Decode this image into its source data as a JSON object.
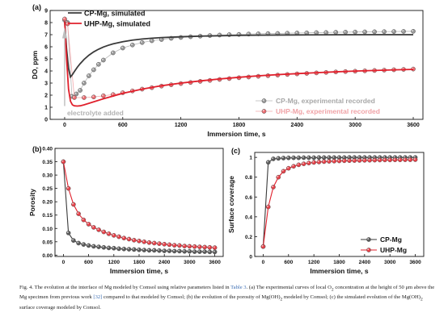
{
  "colors": {
    "cp": "#3a3a3a",
    "uhp": "#e0202c",
    "cp_exp": "#9a9a9a",
    "uhp_exp": "#f2a0a4",
    "link": "#3b6db3"
  },
  "chart_data": [
    {
      "panel": "(a)",
      "type": "line",
      "xlabel": "Immersion time, s",
      "ylabel": "DO, ppm",
      "xlim": [
        -150,
        3700
      ],
      "ylim": [
        0,
        9
      ],
      "xticks": [
        "0",
        "600",
        "1200",
        "1800",
        "2400",
        "3000",
        "3600"
      ],
      "yticks": [
        "0",
        "1",
        "2",
        "3",
        "4",
        "5",
        "6",
        "7",
        "8",
        "9"
      ],
      "legend_top": "top-left",
      "legend_bottom": "bottom-right",
      "annotation": "electrolyte added",
      "series": [
        {
          "name": "CP-Mg, simulated",
          "style": "line",
          "color": "#3a3a3a",
          "x": [
            0,
            20,
            40,
            60,
            80,
            100,
            130,
            160,
            200,
            250,
            300,
            350,
            400,
            450,
            500,
            600,
            700,
            800,
            900,
            1000,
            1200,
            1400,
            1600,
            1800,
            2000,
            2200,
            2400,
            2800,
            3200,
            3600
          ],
          "y": [
            8.1,
            5.8,
            4.2,
            3.5,
            3.7,
            3.95,
            4.3,
            4.6,
            4.95,
            5.3,
            5.58,
            5.8,
            5.98,
            6.12,
            6.24,
            6.42,
            6.55,
            6.64,
            6.71,
            6.76,
            6.83,
            6.88,
            6.91,
            6.94,
            6.96,
            6.97,
            6.98,
            6.99,
            7.0,
            7.0
          ]
        },
        {
          "name": "UHP-Mg, simulated",
          "style": "line",
          "color": "#e0202c",
          "x": [
            0,
            20,
            40,
            60,
            80,
            100,
            130,
            160,
            200,
            300,
            400,
            600,
            800,
            1000,
            1200,
            1400,
            1600,
            1800,
            2000,
            2200,
            2400,
            2600,
            2800,
            3000,
            3200,
            3400,
            3600
          ],
          "y": [
            8.1,
            5.0,
            2.5,
            1.5,
            1.2,
            1.12,
            1.1,
            1.12,
            1.2,
            1.45,
            1.7,
            2.15,
            2.5,
            2.78,
            3.0,
            3.18,
            3.34,
            3.48,
            3.6,
            3.7,
            3.78,
            3.86,
            3.93,
            3.99,
            4.04,
            4.09,
            4.13
          ]
        },
        {
          "name": "CP-Mg, experimental recorded",
          "style": "markers",
          "color": "#9a9a9a",
          "x": [
            0,
            30,
            75,
            120,
            160,
            200,
            250,
            300,
            350,
            400,
            500,
            600,
            700,
            800,
            900,
            1000,
            1100,
            1200,
            1300,
            1400,
            1500,
            1600,
            1700,
            1800,
            1900,
            2000,
            2100,
            2200,
            2300,
            2400,
            2500,
            2600,
            2700,
            2800,
            2900,
            3000,
            3100,
            3200,
            3300,
            3400,
            3500,
            3600
          ],
          "y": [
            8.2,
            8.0,
            1.9,
            2.1,
            2.4,
            3.0,
            3.6,
            4.1,
            4.55,
            4.9,
            5.5,
            5.9,
            6.15,
            6.35,
            6.5,
            6.6,
            6.7,
            6.77,
            6.83,
            6.88,
            6.93,
            6.97,
            7.0,
            7.02,
            7.05,
            7.07,
            7.09,
            7.1,
            7.12,
            7.14,
            7.15,
            7.17,
            7.18,
            7.2,
            7.21,
            7.22,
            7.23,
            7.24,
            7.25,
            7.26,
            7.27,
            7.28
          ]
        },
        {
          "name": "UHP-Mg, experimental recorded",
          "style": "markers",
          "color": "#e0202c",
          "x": [
            0,
            30,
            100,
            200,
            300,
            400,
            500,
            600,
            700,
            800,
            900,
            1000,
            1100,
            1200,
            1300,
            1400,
            1500,
            1600,
            1700,
            1800,
            1900,
            2000,
            2100,
            2200,
            2300,
            2400,
            2500,
            2600,
            2700,
            2800,
            2900,
            3000,
            3100,
            3200,
            3300,
            3400,
            3500,
            3600
          ],
          "y": [
            8.3,
            7.9,
            1.8,
            1.8,
            1.85,
            1.95,
            2.05,
            2.2,
            2.35,
            2.5,
            2.62,
            2.75,
            2.86,
            2.96,
            3.05,
            3.14,
            3.22,
            3.3,
            3.37,
            3.44,
            3.5,
            3.56,
            3.61,
            3.66,
            3.71,
            3.76,
            3.8,
            3.84,
            3.88,
            3.92,
            3.95,
            3.98,
            4.01,
            4.04,
            4.07,
            4.1,
            4.13,
            4.16
          ]
        }
      ]
    },
    {
      "panel": "(b)",
      "type": "line",
      "xlabel": "Immersion time, s",
      "ylabel": "Porosity",
      "xlim": [
        -200,
        3800
      ],
      "ylim": [
        -0.005,
        0.4
      ],
      "xticks": [
        "0",
        "600",
        "1200",
        "1800",
        "2400",
        "3000",
        "3600"
      ],
      "yticks": [
        "0.00",
        "0.05",
        "0.10",
        "0.15",
        "0.20",
        "0.25",
        "0.30",
        "0.35",
        "0.40"
      ],
      "series": [
        {
          "name": "CP-Mg",
          "color": "#3a3a3a",
          "x": [
            0,
            120,
            240,
            360,
            480,
            600,
            720,
            840,
            960,
            1080,
            1200,
            1320,
            1440,
            1560,
            1680,
            1800,
            1920,
            2040,
            2160,
            2280,
            2400,
            2520,
            2640,
            2760,
            2880,
            3000,
            3120,
            3240,
            3360,
            3480,
            3600
          ],
          "y": [
            0.35,
            0.083,
            0.055,
            0.045,
            0.04,
            0.036,
            0.033,
            0.031,
            0.029,
            0.027,
            0.026,
            0.024,
            0.023,
            0.022,
            0.021,
            0.02,
            0.019,
            0.018,
            0.018,
            0.017,
            0.016,
            0.016,
            0.015,
            0.015,
            0.014,
            0.014,
            0.013,
            0.013,
            0.013,
            0.012,
            0.012
          ]
        },
        {
          "name": "UHP-Mg",
          "color": "#e0202c",
          "x": [
            0,
            120,
            240,
            360,
            480,
            600,
            720,
            840,
            960,
            1080,
            1200,
            1320,
            1440,
            1560,
            1680,
            1800,
            1920,
            2040,
            2160,
            2280,
            2400,
            2520,
            2640,
            2760,
            2880,
            3000,
            3120,
            3240,
            3360,
            3480,
            3600
          ],
          "y": [
            0.35,
            0.25,
            0.19,
            0.155,
            0.132,
            0.116,
            0.104,
            0.095,
            0.087,
            0.08,
            0.074,
            0.069,
            0.064,
            0.06,
            0.056,
            0.053,
            0.05,
            0.047,
            0.045,
            0.043,
            0.041,
            0.039,
            0.037,
            0.036,
            0.034,
            0.033,
            0.032,
            0.031,
            0.03,
            0.029,
            0.028
          ]
        }
      ]
    },
    {
      "panel": "(c)",
      "type": "line",
      "xlabel": "Immersion time, s",
      "ylabel": "Surface coverage",
      "xlim": [
        -200,
        3800
      ],
      "ylim": [
        0,
        1.05
      ],
      "xticks": [
        "0",
        "600",
        "1200",
        "1800",
        "2400",
        "3000",
        "3600"
      ],
      "yticks": [
        "0",
        "0.2",
        "0.4",
        "0.6",
        "0.8",
        "1"
      ],
      "legend": "bottom-right",
      "series": [
        {
          "name": "CP-Mg",
          "color": "#3a3a3a",
          "x": [
            0,
            120,
            240,
            360,
            480,
            600,
            720,
            840,
            960,
            1080,
            1200,
            1320,
            1440,
            1560,
            1680,
            1800,
            1920,
            2040,
            2160,
            2280,
            2400,
            2520,
            2640,
            2760,
            2880,
            3000,
            3120,
            3240,
            3360,
            3480,
            3600
          ],
          "y": [
            0.1,
            0.95,
            0.985,
            0.99,
            0.993,
            0.995,
            0.996,
            0.996,
            0.997,
            0.997,
            0.997,
            0.998,
            0.998,
            0.998,
            0.998,
            0.998,
            0.998,
            0.999,
            0.999,
            0.999,
            0.999,
            0.999,
            0.999,
            0.999,
            0.999,
            0.999,
            0.999,
            0.999,
            0.999,
            0.999,
            0.999
          ]
        },
        {
          "name": "UHP-Mg",
          "color": "#e0202c",
          "x": [
            0,
            120,
            240,
            360,
            480,
            600,
            720,
            840,
            960,
            1080,
            1200,
            1320,
            1440,
            1560,
            1680,
            1800,
            1920,
            2040,
            2160,
            2280,
            2400,
            2520,
            2640,
            2760,
            2880,
            3000,
            3120,
            3240,
            3360,
            3480,
            3600
          ],
          "y": [
            0.1,
            0.5,
            0.7,
            0.8,
            0.86,
            0.89,
            0.91,
            0.925,
            0.935,
            0.943,
            0.949,
            0.953,
            0.957,
            0.96,
            0.962,
            0.964,
            0.966,
            0.967,
            0.968,
            0.969,
            0.97,
            0.971,
            0.972,
            0.973,
            0.974,
            0.974,
            0.975,
            0.975,
            0.976,
            0.976,
            0.977
          ]
        }
      ]
    }
  ],
  "caption": {
    "lead": "Fig. 4. The evolution at the interface of Mg modeled by Comsol using relative parameters listed in ",
    "table_ref": "Table 3",
    "part2": ". (a) The experimental curves of local O",
    "o2_sub": "2",
    "part3": " concentration at the height of 50 μm above the Mg specimen from previous work ",
    "cite": "[32]",
    "part4": " compared to that modeled by Comsol; (b) the evolution of the porosity of Mg(OH)",
    "oh_sub1": "2",
    "part5": " modeled by Comsol; (c) the simulated evolution of the Mg(OH)",
    "oh_sub2": "2",
    "part6": " surface coverage modeled by Comsol."
  }
}
